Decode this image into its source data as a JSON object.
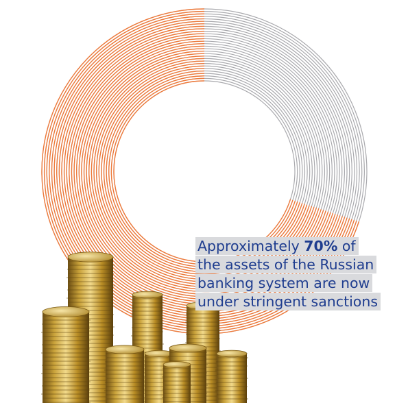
{
  "stat": {
    "share_percent": 70,
    "highlight_color": "#ee7a3b",
    "remainder_color": "#a9a9ad",
    "text_color": "#1f3d8f"
  },
  "caption": {
    "line1_prefix": "Approximately ",
    "line1_value": "70%",
    "line1_suffix": " of",
    "line2": "the assets of the Russian",
    "line3": "banking system are now",
    "line4": "under stringent sanctions"
  },
  "illustration": {
    "subject": "stacks-of-coins-icon",
    "coin_color": "#c9a23a"
  }
}
